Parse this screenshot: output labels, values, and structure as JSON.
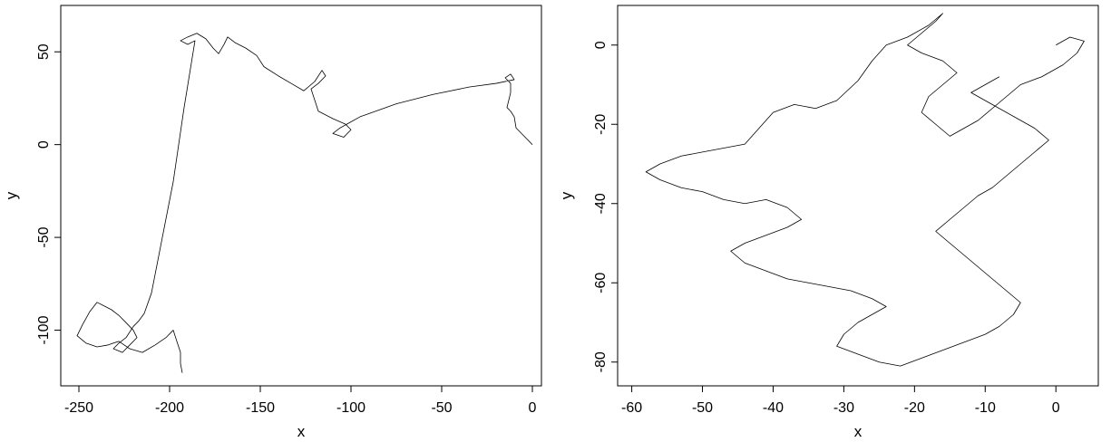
{
  "chart_data": [
    {
      "type": "line",
      "xlabel": "x",
      "ylabel": "y",
      "xlim": [
        -260,
        5
      ],
      "ylim": [
        -130,
        75
      ],
      "x_ticks": [
        -250,
        -200,
        -150,
        -100,
        -50,
        0
      ],
      "y_ticks": [
        -100,
        -50,
        0,
        50
      ],
      "x_tick_labels": [
        "-250",
        "-200",
        "-150",
        "-100",
        "-50",
        "0"
      ],
      "y_tick_labels": [
        "-100",
        "-50",
        "0",
        "50"
      ],
      "series": [
        {
          "color": "#000000",
          "points": [
            [
              0,
              0
            ],
            [
              -3,
              3
            ],
            [
              -6,
              6
            ],
            [
              -9,
              9
            ],
            [
              -10,
              15
            ],
            [
              -12,
              18
            ],
            [
              -14,
              20
            ],
            [
              -13,
              24
            ],
            [
              -12,
              28
            ],
            [
              -12,
              33
            ],
            [
              -15,
              36
            ],
            [
              -12,
              38
            ],
            [
              -10,
              35
            ],
            [
              -20,
              33
            ],
            [
              -35,
              31
            ],
            [
              -55,
              27
            ],
            [
              -75,
              22
            ],
            [
              -95,
              15
            ],
            [
              -106,
              9
            ],
            [
              -110,
              6
            ],
            [
              -104,
              4
            ],
            [
              -100,
              8
            ],
            [
              -103,
              11
            ],
            [
              -110,
              14
            ],
            [
              -118,
              18
            ],
            [
              -120,
              24
            ],
            [
              -122,
              30
            ],
            [
              -118,
              33
            ],
            [
              -114,
              37
            ],
            [
              -116,
              40
            ],
            [
              -120,
              34
            ],
            [
              -126,
              29
            ],
            [
              -133,
              33
            ],
            [
              -140,
              37
            ],
            [
              -148,
              42
            ],
            [
              -152,
              48
            ],
            [
              -158,
              52
            ],
            [
              -164,
              55
            ],
            [
              -168,
              58
            ],
            [
              -170,
              54
            ],
            [
              -173,
              49
            ],
            [
              -176,
              52
            ],
            [
              -180,
              57
            ],
            [
              -185,
              60
            ],
            [
              -190,
              58
            ],
            [
              -194,
              56
            ],
            [
              -190,
              54
            ],
            [
              -186,
              56
            ],
            [
              -192,
              20
            ],
            [
              -198,
              -20
            ],
            [
              -204,
              -50
            ],
            [
              -210,
              -80
            ],
            [
              -214,
              -91
            ],
            [
              -217,
              -95
            ],
            [
              -220,
              -98
            ],
            [
              -224,
              -104
            ],
            [
              -228,
              -107
            ],
            [
              -231,
              -110
            ],
            [
              -226,
              -112
            ],
            [
              -222,
              -108
            ],
            [
              -218,
              -104
            ],
            [
              -220,
              -100
            ],
            [
              -224,
              -96
            ],
            [
              -228,
              -92
            ],
            [
              -232,
              -89
            ],
            [
              -236,
              -87
            ],
            [
              -240,
              -85
            ],
            [
              -244,
              -90
            ],
            [
              -248,
              -97
            ],
            [
              -251,
              -103
            ],
            [
              -246,
              -107
            ],
            [
              -240,
              -109
            ],
            [
              -234,
              -108
            ],
            [
              -228,
              -106
            ],
            [
              -222,
              -110
            ],
            [
              -215,
              -112
            ],
            [
              -208,
              -108
            ],
            [
              -202,
              -104
            ],
            [
              -198,
              -100
            ],
            [
              -196,
              -106
            ],
            [
              -194,
              -112
            ],
            [
              -194,
              -118
            ],
            [
              -193,
              -123
            ]
          ]
        }
      ]
    },
    {
      "type": "line",
      "xlabel": "x",
      "ylabel": "y",
      "xlim": [
        -62,
        6
      ],
      "ylim": [
        -86,
        10
      ],
      "x_ticks": [
        -60,
        -50,
        -40,
        -30,
        -20,
        -10,
        0
      ],
      "y_ticks": [
        -80,
        -60,
        -40,
        -20,
        0
      ],
      "x_tick_labels": [
        "-60",
        "-50",
        "-40",
        "-30",
        "-20",
        "-10",
        "0"
      ],
      "y_tick_labels": [
        "-80",
        "-60",
        "-40",
        "-20",
        "0"
      ],
      "series": [
        {
          "color": "#000000",
          "points": [
            [
              0,
              0
            ],
            [
              2,
              2
            ],
            [
              4,
              1
            ],
            [
              3,
              -2
            ],
            [
              1,
              -5
            ],
            [
              -2,
              -8
            ],
            [
              -5,
              -10
            ],
            [
              -7,
              -13
            ],
            [
              -9,
              -16
            ],
            [
              -11,
              -19
            ],
            [
              -13,
              -21
            ],
            [
              -15,
              -23
            ],
            [
              -17,
              -20
            ],
            [
              -19,
              -17
            ],
            [
              -18,
              -13
            ],
            [
              -16,
              -10
            ],
            [
              -14,
              -7
            ],
            [
              -16,
              -4
            ],
            [
              -19,
              -2
            ],
            [
              -21,
              0
            ],
            [
              -19,
              3
            ],
            [
              -17,
              6
            ],
            [
              -16,
              8
            ],
            [
              -18,
              5
            ],
            [
              -21,
              2
            ],
            [
              -24,
              0
            ],
            [
              -26,
              -4
            ],
            [
              -28,
              -9
            ],
            [
              -31,
              -14
            ],
            [
              -34,
              -16
            ],
            [
              -37,
              -15
            ],
            [
              -40,
              -17
            ],
            [
              -42,
              -21
            ],
            [
              -44,
              -25
            ],
            [
              -47,
              -26
            ],
            [
              -50,
              -27
            ],
            [
              -53,
              -28
            ],
            [
              -56,
              -30
            ],
            [
              -58,
              -32
            ],
            [
              -56,
              -34
            ],
            [
              -53,
              -36
            ],
            [
              -50,
              -37
            ],
            [
              -47,
              -39
            ],
            [
              -44,
              -40
            ],
            [
              -41,
              -39
            ],
            [
              -38,
              -41
            ],
            [
              -36,
              -44
            ],
            [
              -38,
              -46
            ],
            [
              -41,
              -48
            ],
            [
              -44,
              -50
            ],
            [
              -46,
              -52
            ],
            [
              -44,
              -55
            ],
            [
              -41,
              -57
            ],
            [
              -38,
              -59
            ],
            [
              -35,
              -60
            ],
            [
              -32,
              -61
            ],
            [
              -29,
              -62
            ],
            [
              -26,
              -64
            ],
            [
              -24,
              -66
            ],
            [
              -26,
              -68
            ],
            [
              -28,
              -70
            ],
            [
              -30,
              -73
            ],
            [
              -31,
              -76
            ],
            [
              -28,
              -78
            ],
            [
              -25,
              -80
            ],
            [
              -22,
              -81
            ],
            [
              -19,
              -79
            ],
            [
              -16,
              -77
            ],
            [
              -13,
              -75
            ],
            [
              -10,
              -73
            ],
            [
              -8,
              -71
            ],
            [
              -6,
              -68
            ],
            [
              -5,
              -65
            ],
            [
              -7,
              -62
            ],
            [
              -9,
              -59
            ],
            [
              -11,
              -56
            ],
            [
              -13,
              -53
            ],
            [
              -15,
              -50
            ],
            [
              -17,
              -47
            ],
            [
              -15,
              -44
            ],
            [
              -13,
              -41
            ],
            [
              -11,
              -38
            ],
            [
              -9,
              -36
            ],
            [
              -7,
              -33
            ],
            [
              -5,
              -30
            ],
            [
              -3,
              -27
            ],
            [
              -1,
              -24
            ],
            [
              -3,
              -21
            ],
            [
              -6,
              -18
            ],
            [
              -9,
              -15
            ],
            [
              -12,
              -12
            ],
            [
              -10,
              -10
            ],
            [
              -8,
              -8
            ]
          ]
        }
      ]
    }
  ]
}
